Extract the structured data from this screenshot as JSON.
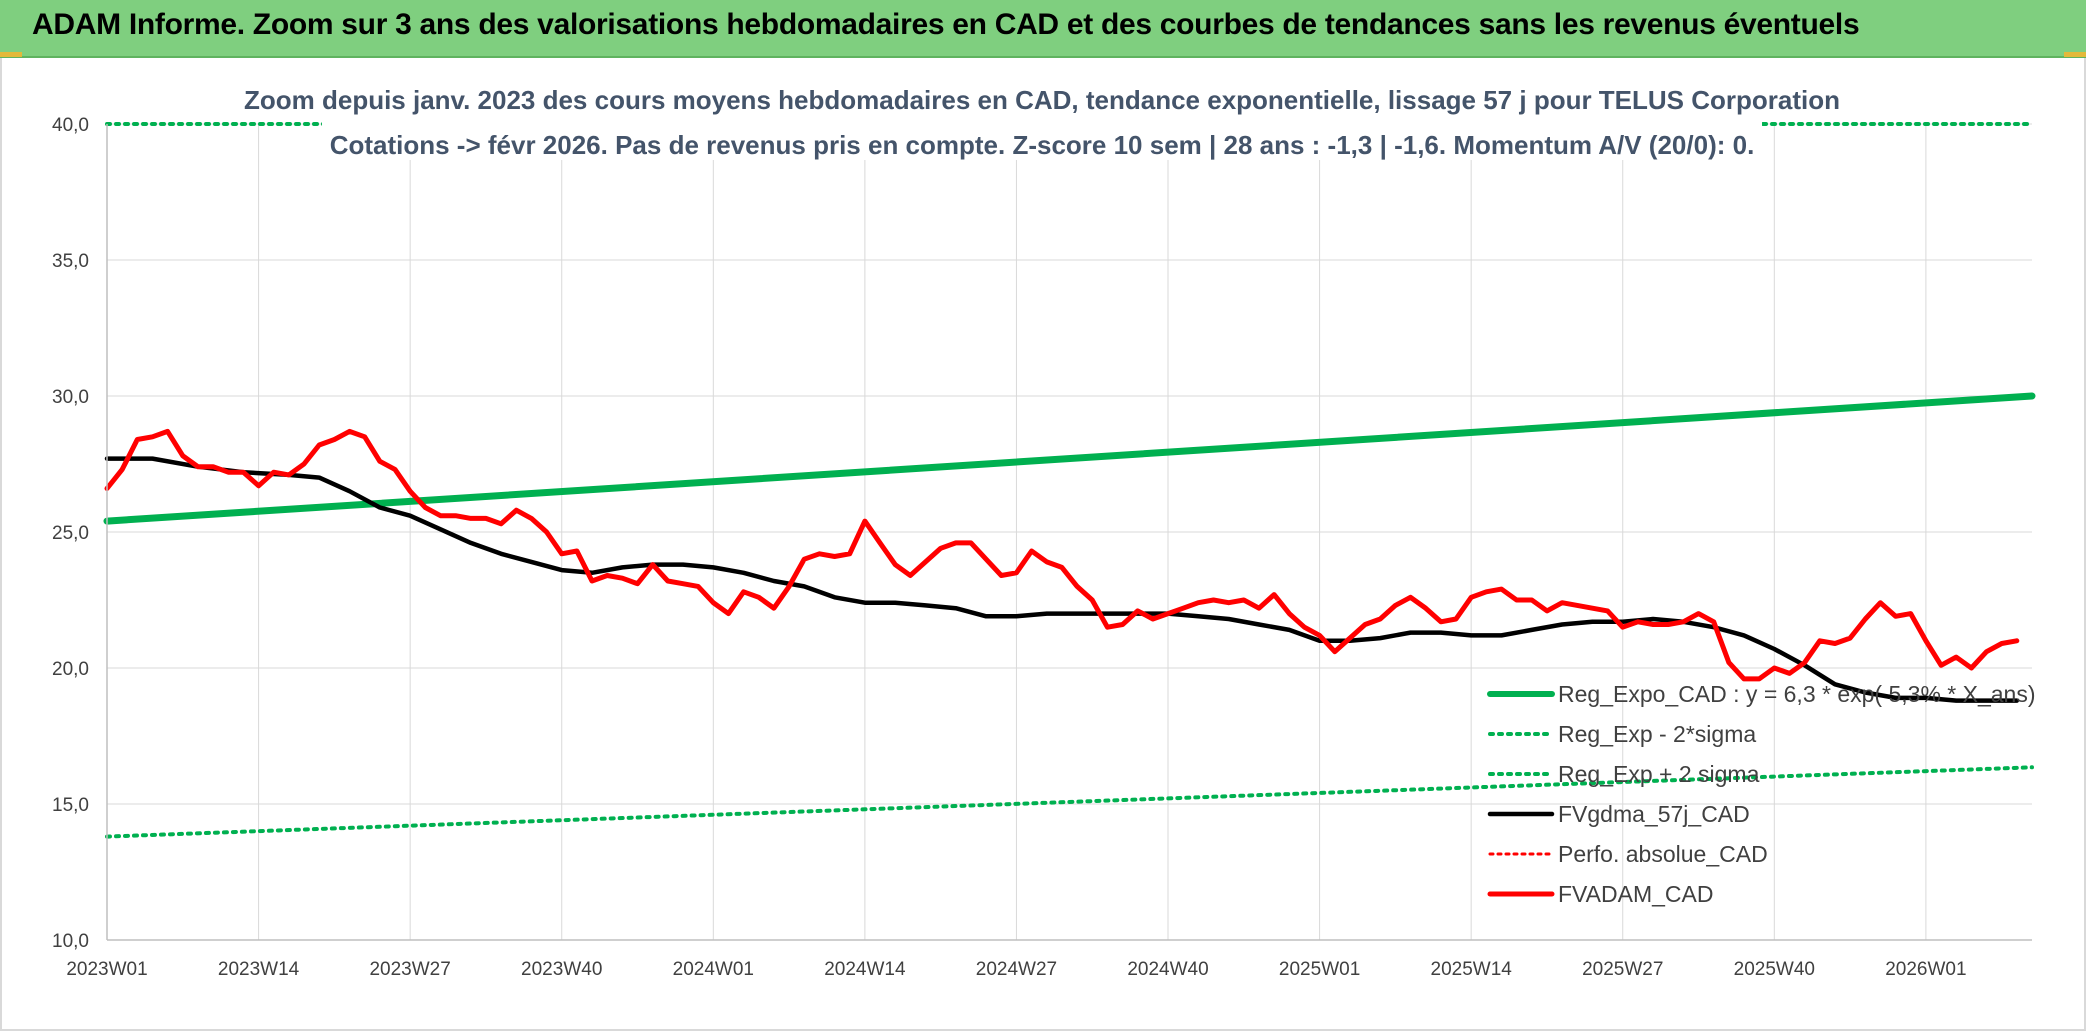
{
  "header": {
    "title": "ADAM Informe. Zoom sur 3 ans des valorisations hebdomadaires en CAD et des courbes de tendances sans les revenus éventuels"
  },
  "colors": {
    "header_bg": "#7fcf7f",
    "reg_expo": "#00b050",
    "bands": "#00b050",
    "fvgdma": "#000000",
    "perfo": "#ff0000",
    "fvadam": "#ff0000",
    "grid": "#d9d9d9"
  },
  "chart_data": {
    "type": "line",
    "title": "Zoom depuis janv. 2023 des cours moyens hebdomadaires en CAD, tendance exponentielle, lissage 57 j pour TELUS Corporation",
    "subtitle": "Cotations -> févr 2026. Pas de revenus pris en compte. Z-score 10 sem | 28 ans : -1,3 | -1,6. Momentum A/V (20/0): 0.",
    "ylim": [
      10,
      40
    ],
    "yticks": [
      "10,0",
      "15,0",
      "20,0",
      "25,0",
      "30,0",
      "35,0",
      "40,0"
    ],
    "ytick_values": [
      10,
      15,
      20,
      25,
      30,
      35,
      40
    ],
    "xlim": [
      0,
      127
    ],
    "xticks": [
      "2023W01",
      "2023W14",
      "2023W27",
      "2023W40",
      "2024W01",
      "2024W14",
      "2024W27",
      "2024W40",
      "2025W01",
      "2025W14",
      "2025W27",
      "2025W40",
      "2026W01"
    ],
    "xtick_positions": [
      0,
      10,
      20,
      30,
      40,
      50,
      60,
      70,
      80,
      90,
      100,
      110,
      120
    ],
    "grid": true,
    "legend_position": "bottom-right",
    "series": [
      {
        "name": "Reg_Expo_CAD : y = 6,3 * exp( 5,3% * X_ans)",
        "style": "solid-thick",
        "x": [
          0,
          127
        ],
        "values": [
          25.4,
          30.0
        ]
      },
      {
        "name": "Reg_Exp - 2*sigma",
        "style": "dotted",
        "x": [
          0,
          127
        ],
        "values": [
          13.8,
          16.35
        ]
      },
      {
        "name": "Reg_Exp + 2 sigma",
        "style": "dotted",
        "x": [
          0,
          127
        ],
        "values": [
          40.0,
          40.0
        ]
      },
      {
        "name": "FVgdma_57j_CAD",
        "style": "solid",
        "x": [
          0,
          3,
          6,
          9,
          12,
          14,
          16,
          18,
          20,
          22,
          24,
          26,
          28,
          30,
          32,
          34,
          36,
          38,
          40,
          42,
          44,
          46,
          48,
          50,
          52,
          54,
          56,
          58,
          60,
          62,
          64,
          66,
          68,
          70,
          72,
          74,
          76,
          78,
          80,
          82,
          84,
          86,
          88,
          90,
          92,
          94,
          96,
          98,
          100,
          102,
          104,
          106,
          108,
          110,
          112,
          114,
          116,
          118,
          120,
          122,
          124,
          126
        ],
        "values": [
          27.7,
          27.7,
          27.4,
          27.2,
          27.1,
          27.0,
          26.5,
          25.9,
          25.6,
          25.1,
          24.6,
          24.2,
          23.9,
          23.6,
          23.5,
          23.7,
          23.8,
          23.8,
          23.7,
          23.5,
          23.2,
          23.0,
          22.6,
          22.4,
          22.4,
          22.3,
          22.2,
          21.9,
          21.9,
          22.0,
          22.0,
          22.0,
          22.0,
          22.0,
          21.9,
          21.8,
          21.6,
          21.4,
          21.0,
          21.0,
          21.1,
          21.3,
          21.3,
          21.2,
          21.2,
          21.4,
          21.6,
          21.7,
          21.7,
          21.8,
          21.7,
          21.5,
          21.2,
          20.7,
          20.1,
          19.4,
          19.1,
          18.9,
          18.9,
          18.8,
          18.8,
          18.8
        ]
      },
      {
        "name": "Perfo. absolue_CAD",
        "style": "dotted-red",
        "x": [],
        "values": []
      },
      {
        "name": "FVADAM_CAD",
        "style": "solid-thick-red",
        "x": [
          0,
          1,
          2,
          3,
          4,
          5,
          6,
          7,
          8,
          9,
          10,
          11,
          12,
          13,
          14,
          15,
          16,
          17,
          18,
          19,
          20,
          21,
          22,
          23,
          24,
          25,
          26,
          27,
          28,
          29,
          30,
          31,
          32,
          33,
          34,
          35,
          36,
          37,
          38,
          39,
          40,
          41,
          42,
          43,
          44,
          45,
          46,
          47,
          48,
          49,
          50,
          51,
          52,
          53,
          54,
          55,
          56,
          57,
          58,
          59,
          60,
          61,
          62,
          63,
          64,
          65,
          66,
          67,
          68,
          69,
          70,
          71,
          72,
          73,
          74,
          75,
          76,
          77,
          78,
          79,
          80,
          81,
          82,
          83,
          84,
          85,
          86,
          87,
          88,
          89,
          90,
          91,
          92,
          93,
          94,
          95,
          96,
          97,
          98,
          99,
          100,
          101,
          102,
          103,
          104,
          105,
          106,
          107,
          108,
          109,
          110,
          111,
          112,
          113,
          114,
          115,
          116,
          117,
          118,
          119,
          120,
          121,
          122,
          123,
          124,
          125,
          126
        ],
        "values": [
          26.6,
          27.3,
          28.4,
          28.5,
          28.7,
          27.8,
          27.4,
          27.4,
          27.2,
          27.2,
          26.7,
          27.2,
          27.1,
          27.5,
          28.2,
          28.4,
          28.7,
          28.5,
          27.6,
          27.3,
          26.5,
          25.9,
          25.6,
          25.6,
          25.5,
          25.5,
          25.3,
          25.8,
          25.5,
          25.0,
          24.2,
          24.3,
          23.2,
          23.4,
          23.3,
          23.1,
          23.8,
          23.2,
          23.1,
          23.0,
          22.4,
          22.0,
          22.8,
          22.6,
          22.2,
          23.0,
          24.0,
          24.2,
          24.1,
          24.2,
          25.4,
          24.6,
          23.8,
          23.4,
          23.9,
          24.4,
          24.6,
          24.6,
          24.0,
          23.4,
          23.5,
          24.3,
          23.9,
          23.7,
          23.0,
          22.5,
          21.5,
          21.6,
          22.1,
          21.8,
          22.0,
          22.2,
          22.4,
          22.5,
          22.4,
          22.5,
          22.2,
          22.7,
          22.0,
          21.5,
          21.2,
          20.6,
          21.1,
          21.6,
          21.8,
          22.3,
          22.6,
          22.2,
          21.7,
          21.8,
          22.6,
          22.8,
          22.9,
          22.5,
          22.5,
          22.1,
          22.4,
          22.3,
          22.2,
          22.1,
          21.5,
          21.7,
          21.6,
          21.6,
          21.7,
          22.0,
          21.7,
          20.2,
          19.6,
          19.6,
          20.0,
          19.8,
          20.2,
          21.0,
          20.9,
          21.1,
          21.8,
          22.4,
          21.9,
          22.0,
          21.0,
          20.1,
          20.4,
          20.0,
          20.6,
          20.9,
          21.0
        ]
      }
    ]
  }
}
